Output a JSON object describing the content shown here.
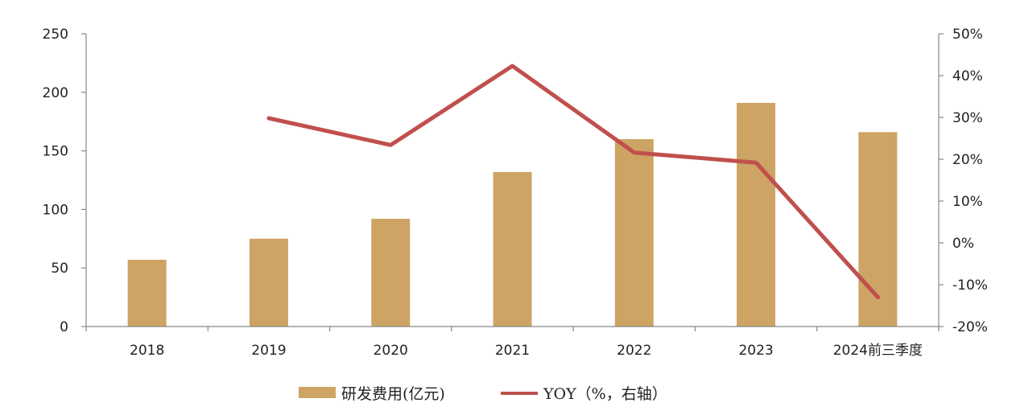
{
  "chart_data": {
    "type": "bar",
    "categories": [
      "2018",
      "2019",
      "2020",
      "2021",
      "2022",
      "2023",
      "2024前三季度"
    ],
    "series": [
      {
        "name": "研发费用(亿元)",
        "type": "bar",
        "axis": "left",
        "color": "#CDA464",
        "values": [
          57,
          75,
          92,
          132,
          160,
          191,
          166
        ]
      },
      {
        "name": "YOY（%，右轴）",
        "type": "line",
        "axis": "right",
        "color": "#C0504D",
        "values": [
          null,
          29.8,
          23.4,
          42.3,
          21.6,
          19.2,
          -13.0
        ]
      }
    ],
    "ylim_left": [
      0,
      250
    ],
    "yticks_left": [
      "0",
      "50",
      "100",
      "150",
      "200",
      "250"
    ],
    "ylim_right": [
      -20,
      50
    ],
    "yticks_right": [
      "-20%",
      "-10%",
      "0%",
      "10%",
      "20%",
      "30%",
      "40%",
      "50%"
    ],
    "legend_position": "bottom-center",
    "grid": false
  }
}
